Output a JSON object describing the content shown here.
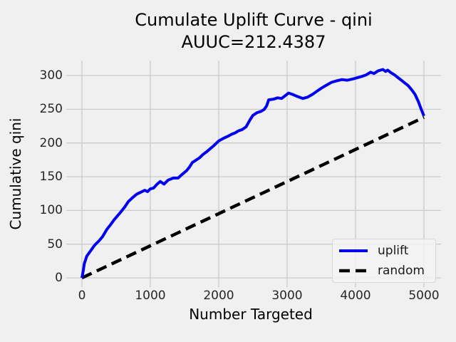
{
  "chart_data": {
    "type": "line",
    "title": "Cumulate Uplift Curve - qini",
    "subtitle": "AUUC=212.4387",
    "auuc": 212.4387,
    "xlabel": "Number Targeted",
    "ylabel": "Cumulative qini",
    "xticks": [
      0,
      1000,
      2000,
      3000,
      4000,
      5000
    ],
    "yticks": [
      0,
      50,
      100,
      150,
      200,
      250,
      300
    ],
    "xlim": [
      -229,
      5250
    ],
    "ylim": [
      -13.7,
      322.2
    ],
    "grid": true,
    "legend_position": "lower right",
    "colors": {
      "background": "#f0f0f0",
      "grid": "#cbcbcb",
      "uplift": "#0202f0",
      "random": "#000000",
      "text": "#000000",
      "tick_text": "#262626"
    },
    "series": [
      {
        "name": "uplift",
        "color": "#0202f0",
        "style": "solid",
        "linewidth": 4,
        "points": [
          [
            0,
            0
          ],
          [
            20,
            11
          ],
          [
            35,
            21
          ],
          [
            70,
            32
          ],
          [
            104,
            37
          ],
          [
            140,
            42
          ],
          [
            175,
            47
          ],
          [
            200,
            50
          ],
          [
            250,
            55
          ],
          [
            300,
            61
          ],
          [
            365,
            72
          ],
          [
            420,
            79
          ],
          [
            470,
            86
          ],
          [
            520,
            92
          ],
          [
            570,
            98
          ],
          [
            625,
            105
          ],
          [
            677,
            113
          ],
          [
            740,
            119
          ],
          [
            800,
            124
          ],
          [
            860,
            127
          ],
          [
            920,
            130
          ],
          [
            960,
            128
          ],
          [
            1000,
            132
          ],
          [
            1045,
            133
          ],
          [
            1100,
            139
          ],
          [
            1146,
            143
          ],
          [
            1200,
            139
          ],
          [
            1260,
            145
          ],
          [
            1337,
            148
          ],
          [
            1406,
            148
          ],
          [
            1460,
            153
          ],
          [
            1530,
            159
          ],
          [
            1570,
            164
          ],
          [
            1615,
            171
          ],
          [
            1660,
            174
          ],
          [
            1719,
            178
          ],
          [
            1770,
            183
          ],
          [
            1823,
            187
          ],
          [
            1880,
            192
          ],
          [
            1927,
            196
          ],
          [
            2000,
            203
          ],
          [
            2070,
            207
          ],
          [
            2135,
            210
          ],
          [
            2190,
            213
          ],
          [
            2240,
            215
          ],
          [
            2290,
            218
          ],
          [
            2344,
            220
          ],
          [
            2400,
            224
          ],
          [
            2455,
            234
          ],
          [
            2500,
            241
          ],
          [
            2560,
            245
          ],
          [
            2620,
            247
          ],
          [
            2667,
            250
          ],
          [
            2700,
            255
          ],
          [
            2730,
            264
          ],
          [
            2800,
            265
          ],
          [
            2860,
            267
          ],
          [
            2920,
            266
          ],
          [
            2970,
            270
          ],
          [
            3021,
            274
          ],
          [
            3080,
            272
          ],
          [
            3150,
            269
          ],
          [
            3230,
            266
          ],
          [
            3300,
            268
          ],
          [
            3370,
            272
          ],
          [
            3440,
            277
          ],
          [
            3510,
            282
          ],
          [
            3580,
            286
          ],
          [
            3650,
            290
          ],
          [
            3720,
            292
          ],
          [
            3800,
            294
          ],
          [
            3880,
            293
          ],
          [
            3960,
            295
          ],
          [
            4030,
            297
          ],
          [
            4100,
            299
          ],
          [
            4156,
            301
          ],
          [
            4220,
            305
          ],
          [
            4270,
            303
          ],
          [
            4330,
            307
          ],
          [
            4400,
            309
          ],
          [
            4440,
            306
          ],
          [
            4470,
            308
          ],
          [
            4520,
            304
          ],
          [
            4570,
            301
          ],
          [
            4620,
            297
          ],
          [
            4670,
            293
          ],
          [
            4720,
            289
          ],
          [
            4770,
            285
          ],
          [
            4820,
            279
          ],
          [
            4870,
            272
          ],
          [
            4920,
            261
          ],
          [
            4960,
            250
          ],
          [
            5000,
            240
          ]
        ]
      },
      {
        "name": "random",
        "color": "#000000",
        "style": "dashed",
        "linewidth": 4.5,
        "points": [
          [
            0,
            0
          ],
          [
            5000,
            238
          ]
        ]
      }
    ]
  },
  "legend": {
    "items": [
      {
        "label": "uplift"
      },
      {
        "label": "random"
      }
    ]
  }
}
